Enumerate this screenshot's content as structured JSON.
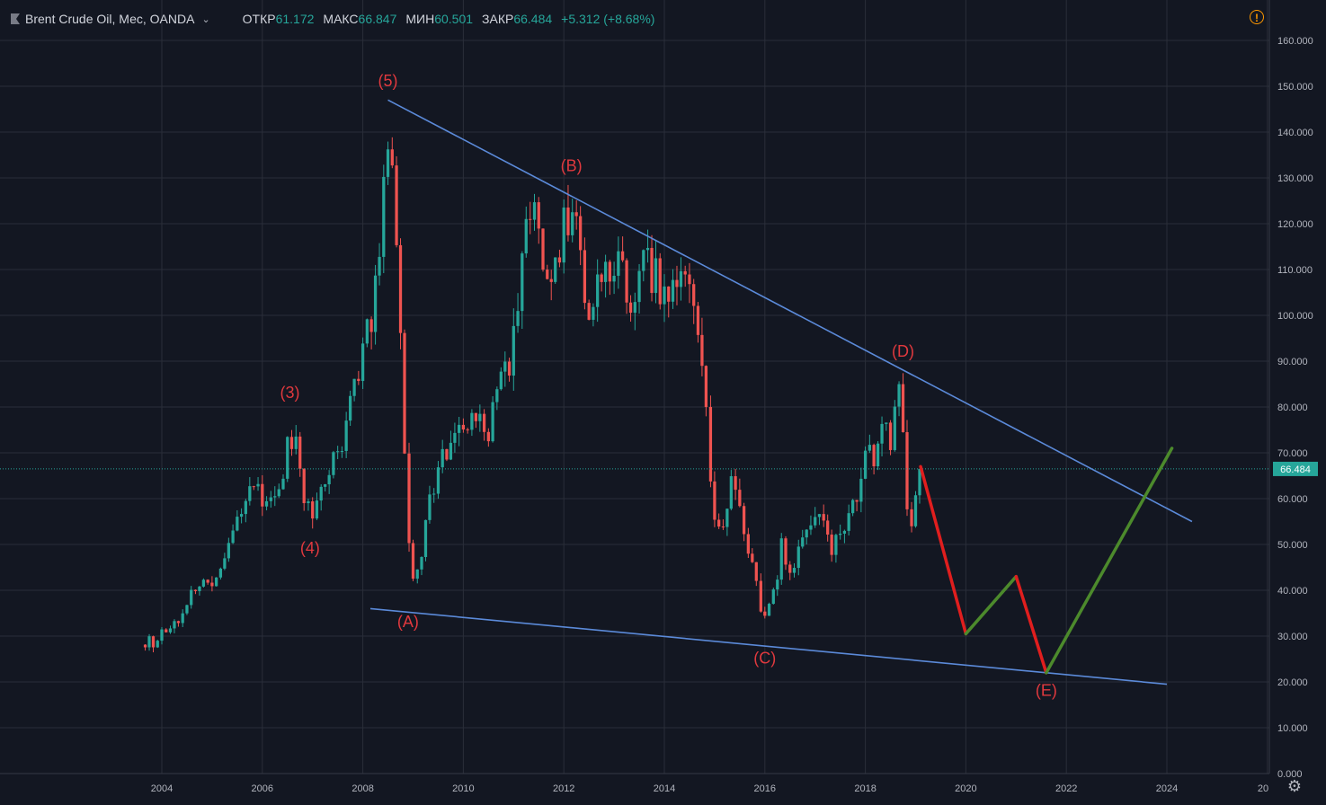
{
  "header": {
    "symbol": "Brent Crude Oil, Мес, OANDA",
    "open_label": "ОТКР",
    "open_value": "61.172",
    "high_label": "МАКС",
    "high_value": "66.847",
    "low_label": "МИН",
    "low_value": "60.501",
    "close_label": "ЗАКР",
    "close_value": "66.484",
    "change": "+5.312 (+8.68%)"
  },
  "colors": {
    "background": "#131722",
    "grid": "#2a2e39",
    "up": "#26a69a",
    "down": "#ef5350",
    "trendline": "#5b8ad9",
    "annotation": "#e0393e",
    "projection_down": "#e01e1e",
    "projection_up": "#4c8a2c",
    "axis_text": "#b2b5be",
    "last_price": "#26a69a"
  },
  "chart_data": {
    "type": "candlestick",
    "interval": "monthly",
    "x_range": [
      "2003",
      "2025"
    ],
    "ylim": [
      0,
      165
    ],
    "y_ticks": [
      "0.000",
      "10.000",
      "20.000",
      "30.000",
      "40.000",
      "50.000",
      "60.000",
      "70.000",
      "80.000",
      "90.000",
      "100.000",
      "110.000",
      "120.000",
      "130.000",
      "140.000",
      "150.000",
      "160.000"
    ],
    "x_ticks": [
      "2004",
      "2006",
      "2008",
      "2010",
      "2012",
      "2014",
      "2016",
      "2018",
      "2020",
      "2022",
      "2024",
      "20"
    ],
    "last_price": "66.484",
    "closes": [
      [
        2003.67,
        29
      ],
      [
        2003.83,
        28.5
      ],
      [
        2004.0,
        30.5
      ],
      [
        2004.17,
        31.5
      ],
      [
        2004.33,
        34
      ],
      [
        2004.5,
        36.5
      ],
      [
        2004.67,
        40
      ],
      [
        2004.83,
        44
      ],
      [
        2005.0,
        41
      ],
      [
        2005.17,
        47
      ],
      [
        2005.33,
        51
      ],
      [
        2005.5,
        55
      ],
      [
        2005.67,
        62
      ],
      [
        2005.83,
        65
      ],
      [
        2006.0,
        61
      ],
      [
        2006.17,
        58
      ],
      [
        2006.33,
        65
      ],
      [
        2006.5,
        70
      ],
      [
        2006.67,
        75
      ],
      [
        2006.83,
        62
      ],
      [
        2007.0,
        56
      ],
      [
        2007.17,
        60
      ],
      [
        2007.33,
        65
      ],
      [
        2007.5,
        70
      ],
      [
        2007.67,
        77
      ],
      [
        2007.83,
        85
      ],
      [
        2008.0,
        92
      ],
      [
        2008.17,
        100
      ],
      [
        2008.33,
        115
      ],
      [
        2008.5,
        138
      ],
      [
        2008.67,
        118
      ],
      [
        2008.75,
        100
      ],
      [
        2008.83,
        70
      ],
      [
        2008.92,
        50
      ],
      [
        2009.0,
        42
      ],
      [
        2009.17,
        48
      ],
      [
        2009.33,
        60
      ],
      [
        2009.5,
        68
      ],
      [
        2009.67,
        72
      ],
      [
        2009.83,
        76
      ],
      [
        2010.0,
        76
      ],
      [
        2010.17,
        80
      ],
      [
        2010.33,
        78
      ],
      [
        2010.5,
        74
      ],
      [
        2010.67,
        82
      ],
      [
        2010.83,
        86
      ],
      [
        2011.0,
        95
      ],
      [
        2011.17,
        110
      ],
      [
        2011.33,
        123
      ],
      [
        2011.5,
        115
      ],
      [
        2011.67,
        106
      ],
      [
        2011.83,
        110
      ],
      [
        2012.0,
        120
      ],
      [
        2012.17,
        124
      ],
      [
        2012.33,
        110
      ],
      [
        2012.5,
        96
      ],
      [
        2012.67,
        112
      ],
      [
        2012.83,
        109
      ],
      [
        2013.0,
        114
      ],
      [
        2013.17,
        108
      ],
      [
        2013.33,
        102
      ],
      [
        2013.5,
        106
      ],
      [
        2013.67,
        112
      ],
      [
        2013.83,
        108
      ],
      [
        2014.0,
        107
      ],
      [
        2014.17,
        108
      ],
      [
        2014.33,
        110
      ],
      [
        2014.5,
        105
      ],
      [
        2014.67,
        95
      ],
      [
        2014.83,
        80
      ],
      [
        2014.92,
        62
      ],
      [
        2015.0,
        55
      ],
      [
        2015.17,
        55
      ],
      [
        2015.33,
        64
      ],
      [
        2015.5,
        60
      ],
      [
        2015.67,
        49
      ],
      [
        2015.83,
        44
      ],
      [
        2015.92,
        37
      ],
      [
        2016.0,
        35
      ],
      [
        2016.17,
        40
      ],
      [
        2016.33,
        49
      ],
      [
        2016.5,
        44
      ],
      [
        2016.67,
        49
      ],
      [
        2016.83,
        54
      ],
      [
        2017.0,
        55
      ],
      [
        2017.17,
        53
      ],
      [
        2017.33,
        48
      ],
      [
        2017.5,
        52
      ],
      [
        2017.67,
        57
      ],
      [
        2017.83,
        62
      ],
      [
        2018.0,
        69
      ],
      [
        2018.17,
        70
      ],
      [
        2018.33,
        77
      ],
      [
        2018.5,
        74
      ],
      [
        2018.67,
        82
      ],
      [
        2018.75,
        76
      ],
      [
        2018.83,
        60
      ],
      [
        2018.92,
        54
      ],
      [
        2019.0,
        61.2
      ],
      [
        2019.08,
        66.5
      ]
    ],
    "trendlines": [
      {
        "from": [
          2008.5,
          147
        ],
        "to": [
          2024.5,
          55
        ]
      },
      {
        "from": [
          2008.15,
          36
        ],
        "to": [
          2024.0,
          19.5
        ]
      }
    ],
    "projection": [
      [
        2019.1,
        67,
        "down"
      ],
      [
        2020.0,
        30.5,
        "up"
      ],
      [
        2021.0,
        43,
        "down"
      ],
      [
        2021.6,
        22,
        "up"
      ],
      [
        2024.1,
        71,
        "end"
      ]
    ],
    "annotations": [
      {
        "text": "(3)",
        "x": 2006.55,
        "y": 82
      },
      {
        "text": "(4)",
        "x": 2006.95,
        "y": 48
      },
      {
        "text": "(5)",
        "x": 2008.5,
        "y": 150
      },
      {
        "text": "(A)",
        "x": 2008.9,
        "y": 32
      },
      {
        "text": "(B)",
        "x": 2012.15,
        "y": 131.5
      },
      {
        "text": "(C)",
        "x": 2016.0,
        "y": 24
      },
      {
        "text": "(D)",
        "x": 2018.75,
        "y": 91
      },
      {
        "text": "(E)",
        "x": 2021.6,
        "y": 17
      }
    ]
  }
}
